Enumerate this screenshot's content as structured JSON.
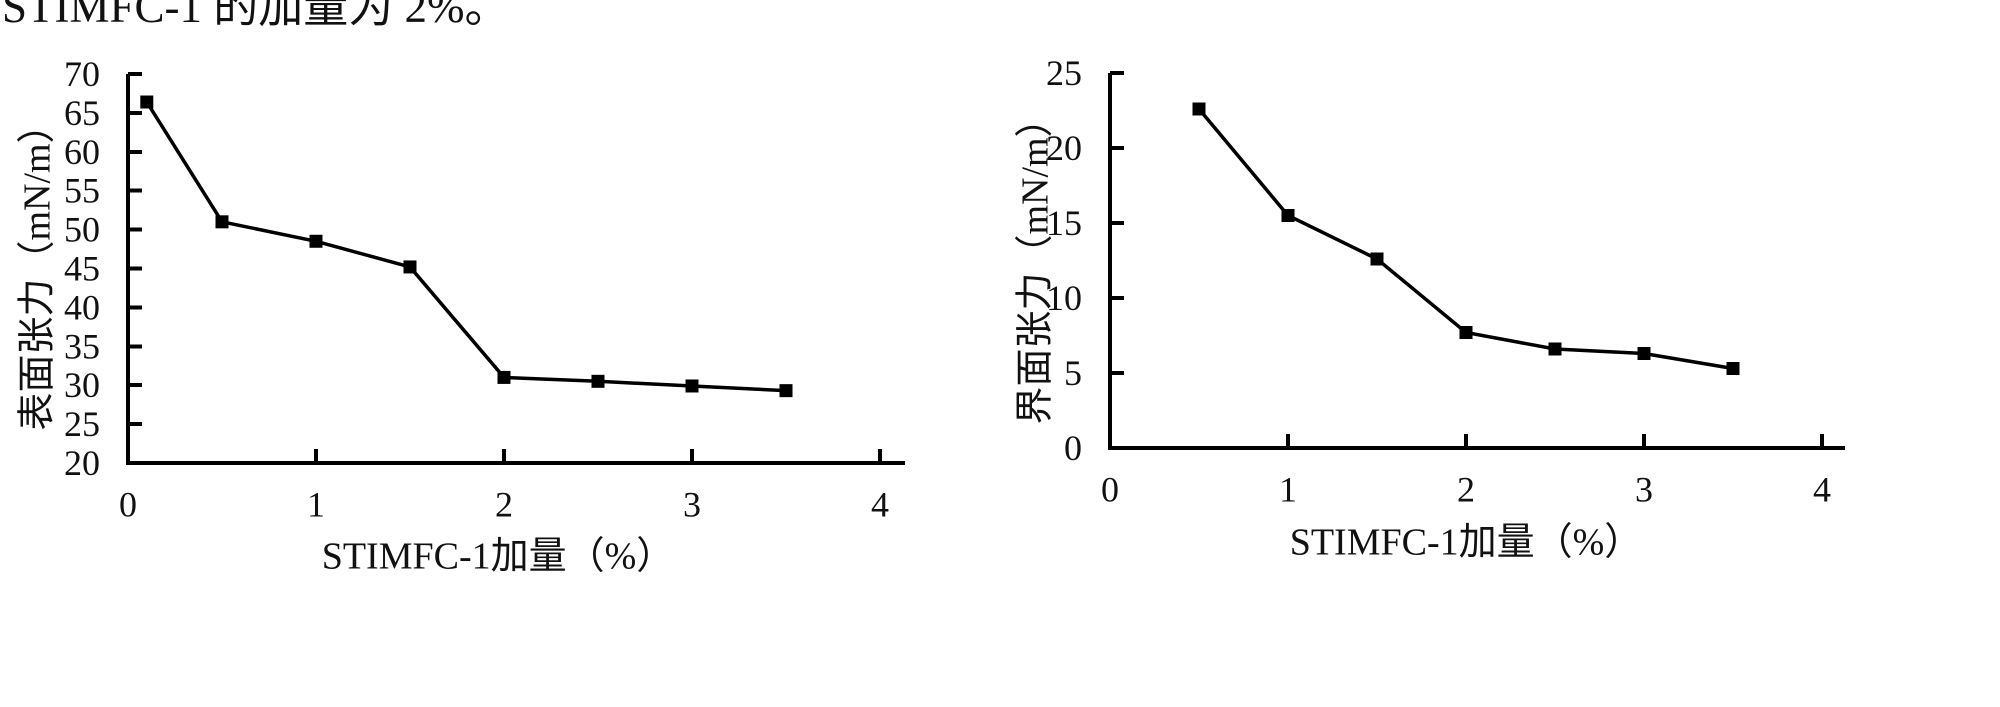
{
  "header": {
    "text": "STIMFC-1 的加量为 2%。"
  },
  "chart_data": [
    {
      "type": "line",
      "title": "",
      "xlabel": "STIMFC-1加量（%）",
      "ylabel": "表面张力（mN/m）",
      "xlim": [
        0,
        4
      ],
      "ylim": [
        20,
        70
      ],
      "x_ticks": [
        0,
        1,
        2,
        3,
        4
      ],
      "y_ticks": [
        20,
        25,
        30,
        35,
        40,
        45,
        50,
        55,
        60,
        65,
        70
      ],
      "grid": false,
      "legend": null,
      "marker": "filled-square",
      "line_color": "#000000",
      "series": [
        {
          "name": "表面张力",
          "x": [
            0.1,
            0.5,
            1.0,
            1.5,
            2.0,
            2.5,
            3.0,
            3.5
          ],
          "y": [
            66.4,
            51.0,
            48.5,
            45.2,
            31.0,
            30.5,
            29.9,
            29.3
          ]
        }
      ]
    },
    {
      "type": "line",
      "title": "",
      "xlabel": "STIMFC-1加量（%）",
      "ylabel": "界面张力（mN/m）",
      "xlim": [
        0,
        4
      ],
      "ylim": [
        0,
        25
      ],
      "x_ticks": [
        0,
        1,
        2,
        3,
        4
      ],
      "y_ticks": [
        0,
        5,
        10,
        15,
        20,
        25
      ],
      "grid": false,
      "legend": null,
      "marker": "filled-square",
      "line_color": "#000000",
      "series": [
        {
          "name": "界面张力",
          "x": [
            0.5,
            1.0,
            1.5,
            2.0,
            2.5,
            3.0,
            3.5
          ],
          "y": [
            22.6,
            15.5,
            12.6,
            7.7,
            6.6,
            6.3,
            5.3
          ]
        }
      ]
    }
  ]
}
